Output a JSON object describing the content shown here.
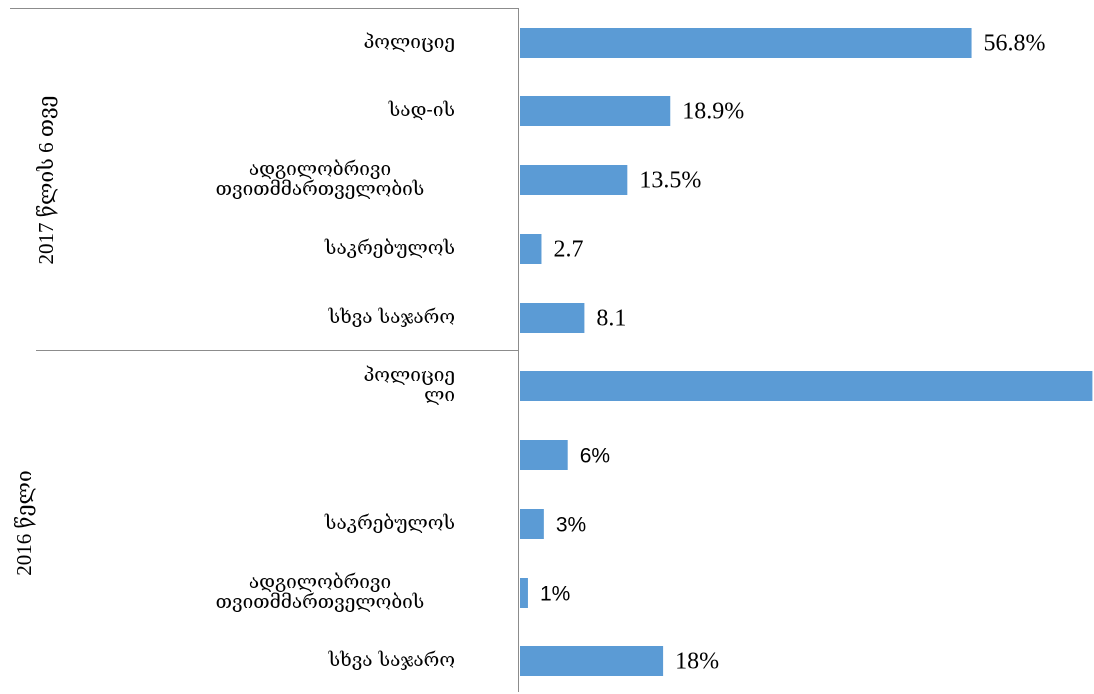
{
  "chart_data": {
    "type": "bar",
    "orientation": "horizontal",
    "bar_color": "#5b9bd5",
    "groups": [
      {
        "name": "2017 წლის 6 თვე",
        "bars": [
          {
            "label": [
              "პოლიციე"
            ],
            "value": 56.8,
            "value_label": "56.8%"
          },
          {
            "label": [
              "სად-ის"
            ],
            "value": 18.9,
            "value_label": "18.9%"
          },
          {
            "label": [
              "ადგილობრივი",
              "თვითმმართველობის"
            ],
            "value": 13.5,
            "value_label": "13.5%"
          },
          {
            "label": [
              "საკრებულოს"
            ],
            "value": 2.7,
            "value_label": "2.7"
          },
          {
            "label": [
              "სხვა საჯარო"
            ],
            "value": 8.1,
            "value_label": "8.1"
          }
        ]
      },
      {
        "name": "2016 წელი",
        "bars": [
          {
            "label": [
              "პოლიციე",
              "ლი"
            ],
            "value": 72,
            "value_label": ""
          },
          {
            "label": [],
            "value": 6,
            "value_label": "6%"
          },
          {
            "label": [
              "საკრებულოს"
            ],
            "value": 3,
            "value_label": "3%"
          },
          {
            "label": [
              "ადგილობრივი",
              "თვითმმართველობის"
            ],
            "value": 1,
            "value_label": "1%"
          },
          {
            "label": [
              "სხვა საჯარო"
            ],
            "value": 18,
            "value_label": "18%"
          }
        ]
      }
    ],
    "grid": false,
    "legend": "none"
  }
}
